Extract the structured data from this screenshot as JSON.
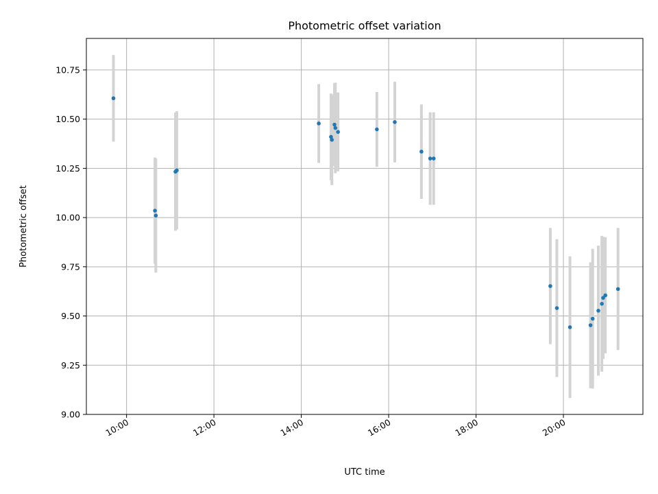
{
  "chart_data": {
    "type": "scatter",
    "title": "Photometric offset variation",
    "xlabel": "UTC time",
    "ylabel": "Photometric offset",
    "x_unit": "hours UTC",
    "xlim": [
      9.08,
      21.82
    ],
    "ylim": [
      9.0,
      10.91
    ],
    "x_ticks": [
      {
        "value": 10,
        "label": "10:00"
      },
      {
        "value": 12,
        "label": "12:00"
      },
      {
        "value": 14,
        "label": "14:00"
      },
      {
        "value": 16,
        "label": "16:00"
      },
      {
        "value": 18,
        "label": "18:00"
      },
      {
        "value": 20,
        "label": "20:00"
      }
    ],
    "y_ticks": [
      {
        "value": 9.0,
        "label": "9.00"
      },
      {
        "value": 9.25,
        "label": "9.25"
      },
      {
        "value": 9.5,
        "label": "9.50"
      },
      {
        "value": 9.75,
        "label": "9.75"
      },
      {
        "value": 10.0,
        "label": "10.00"
      },
      {
        "value": 10.25,
        "label": "10.25"
      },
      {
        "value": 10.5,
        "label": "10.50"
      },
      {
        "value": 10.75,
        "label": "10.75"
      }
    ],
    "grid": true,
    "marker_color": "#1f77b4",
    "errorbar_color": "#d3d3d3",
    "points": [
      {
        "x": 9.7,
        "y": 10.606,
        "err": 0.22
      },
      {
        "x": 10.65,
        "y": 10.035,
        "err": 0.27
      },
      {
        "x": 10.67,
        "y": 10.01,
        "err": 0.29
      },
      {
        "x": 11.12,
        "y": 10.233,
        "err": 0.3
      },
      {
        "x": 11.15,
        "y": 10.24,
        "err": 0.3
      },
      {
        "x": 14.4,
        "y": 10.478,
        "err": 0.2
      },
      {
        "x": 14.68,
        "y": 10.41,
        "err": 0.22
      },
      {
        "x": 14.7,
        "y": 10.395,
        "err": 0.23
      },
      {
        "x": 14.76,
        "y": 10.472,
        "err": 0.21
      },
      {
        "x": 14.78,
        "y": 10.455,
        "err": 0.23
      },
      {
        "x": 14.84,
        "y": 10.435,
        "err": 0.2
      },
      {
        "x": 15.73,
        "y": 10.448,
        "err": 0.19
      },
      {
        "x": 16.14,
        "y": 10.485,
        "err": 0.205
      },
      {
        "x": 16.75,
        "y": 10.335,
        "err": 0.24
      },
      {
        "x": 16.95,
        "y": 10.3,
        "err": 0.235
      },
      {
        "x": 17.03,
        "y": 10.3,
        "err": 0.235
      },
      {
        "x": 19.7,
        "y": 9.652,
        "err": 0.295
      },
      {
        "x": 19.85,
        "y": 9.54,
        "err": 0.35
      },
      {
        "x": 20.15,
        "y": 9.443,
        "err": 0.36
      },
      {
        "x": 20.62,
        "y": 9.453,
        "err": 0.32
      },
      {
        "x": 20.67,
        "y": 9.486,
        "err": 0.355
      },
      {
        "x": 20.8,
        "y": 9.527,
        "err": 0.33
      },
      {
        "x": 20.88,
        "y": 9.562,
        "err": 0.345
      },
      {
        "x": 20.91,
        "y": 9.592,
        "err": 0.31
      },
      {
        "x": 20.96,
        "y": 9.605,
        "err": 0.295
      },
      {
        "x": 21.25,
        "y": 9.637,
        "err": 0.31
      }
    ]
  }
}
